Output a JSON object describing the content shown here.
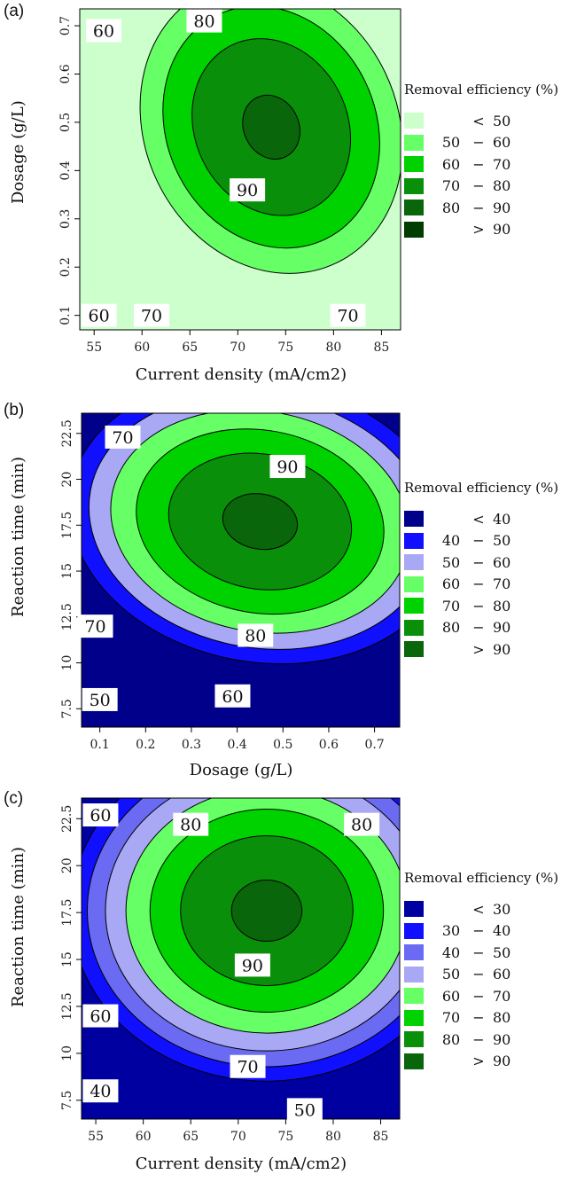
{
  "chart_data": [
    {
      "type": "contour",
      "panel_label": "(a)",
      "xlabel": "Current density (mA/cm2)",
      "ylabel": "Dosage (g/L)",
      "xlim": [
        53.5,
        87
      ],
      "ylim": [
        0.07,
        0.735
      ],
      "xticks": [
        55,
        60,
        65,
        70,
        75,
        80,
        85
      ],
      "yticks": [
        0.1,
        0.2,
        0.3,
        0.4,
        0.5,
        0.6,
        0.7
      ],
      "ytick_labels": [
        "0.1",
        "0.2",
        "0.3",
        "0.4",
        "0.5",
        "0.6",
        "0.7"
      ],
      "contour_levels": [
        60,
        70,
        80,
        90
      ],
      "optimum": {
        "x": 73.5,
        "y": 0.49,
        "max": 91.5
      },
      "contour_labels": [
        {
          "text": "60",
          "x": 56.0,
          "y": 0.69
        },
        {
          "text": "80",
          "x": 66.5,
          "y": 0.71
        },
        {
          "text": "90",
          "x": 71.0,
          "y": 0.36
        },
        {
          "text": "60",
          "x": 55.5,
          "y": 0.1
        },
        {
          "text": "70",
          "x": 61.0,
          "y": 0.1
        },
        {
          "text": "70",
          "x": 81.5,
          "y": 0.1
        }
      ],
      "legend": {
        "title": "Removal efficiency (%)",
        "entries": [
          {
            "lo": "",
            "op": "<",
            "hi": "50",
            "color": "#ccffcc"
          },
          {
            "lo": "50",
            "op": "−",
            "hi": "60",
            "color": "#66ff66"
          },
          {
            "lo": "60",
            "op": "−",
            "hi": "70",
            "color": "#00d200"
          },
          {
            "lo": "70",
            "op": "−",
            "hi": "80",
            "color": "#0a8f0a"
          },
          {
            "lo": "80",
            "op": "−",
            "hi": "90",
            "color": "#0a660a"
          },
          {
            "lo": "",
            "op": ">",
            "hi": "90",
            "color": "#003d00"
          }
        ]
      }
    },
    {
      "type": "contour",
      "panel_label": "(b)",
      "xlabel": "Dosage (g/L)",
      "ylabel": "Reaction time (min)",
      "xlim": [
        0.06,
        0.755
      ],
      "ylim": [
        6.5,
        23.6
      ],
      "xticks": [
        0.1,
        0.2,
        0.3,
        0.4,
        0.5,
        0.6,
        0.7
      ],
      "xtick_labels": [
        "0.1",
        "0.2",
        "0.3",
        "0.4",
        "0.5",
        "0.6",
        "0.7"
      ],
      "yticks": [
        7.5,
        10,
        12.5,
        15,
        17.5,
        20,
        22.5
      ],
      "contour_levels": [
        40,
        50,
        60,
        70,
        80,
        90
      ],
      "optimum": {
        "x": 0.45,
        "y": 17.7,
        "max": 92
      },
      "contour_labels": [
        {
          "text": "70",
          "x": 0.15,
          "y": 22.3
        },
        {
          "text": "90",
          "x": 0.51,
          "y": 20.7
        },
        {
          "text": "70",
          "x": 0.09,
          "y": 12.0
        },
        {
          "text": "80",
          "x": 0.44,
          "y": 11.5
        },
        {
          "text": "50",
          "x": 0.1,
          "y": 8.0
        },
        {
          "text": "60",
          "x": 0.39,
          "y": 8.2
        }
      ],
      "legend": {
        "title": "Removal efficiency (%)",
        "entries": [
          {
            "lo": "",
            "op": "<",
            "hi": "40",
            "color": "#00008b"
          },
          {
            "lo": "40",
            "op": "−",
            "hi": "50",
            "color": "#1010ff"
          },
          {
            "lo": "50",
            "op": "−",
            "hi": "60",
            "color": "#a8a8f5"
          },
          {
            "lo": "60",
            "op": "−",
            "hi": "70",
            "color": "#66ff66"
          },
          {
            "lo": "70",
            "op": "−",
            "hi": "80",
            "color": "#00d200"
          },
          {
            "lo": "80",
            "op": "−",
            "hi": "90",
            "color": "#0a8f0a"
          },
          {
            "lo": "",
            "op": ">",
            "hi": "90",
            "color": "#0a660a"
          }
        ]
      }
    },
    {
      "type": "contour",
      "panel_label": "(c)",
      "xlabel": "Current density (mA/cm2)",
      "ylabel": "Reaction time (min)",
      "xlim": [
        53.5,
        87
      ],
      "ylim": [
        6.5,
        23.6
      ],
      "xticks": [
        55,
        60,
        65,
        70,
        75,
        80,
        85
      ],
      "yticks": [
        7.5,
        10,
        12.5,
        15,
        17.5,
        20,
        22.5
      ],
      "contour_levels": [
        30,
        40,
        50,
        60,
        70,
        80,
        90
      ],
      "optimum": {
        "x": 73,
        "y": 17.6,
        "max": 92
      },
      "contour_labels": [
        {
          "text": "60",
          "x": 55.5,
          "y": 22.7
        },
        {
          "text": "80",
          "x": 65.0,
          "y": 22.2
        },
        {
          "text": "80",
          "x": 83.0,
          "y": 22.2
        },
        {
          "text": "90",
          "x": 71.5,
          "y": 14.7
        },
        {
          "text": "60",
          "x": 55.5,
          "y": 12.0
        },
        {
          "text": "70",
          "x": 71.0,
          "y": 9.3
        },
        {
          "text": "40",
          "x": 55.5,
          "y": 8.0
        },
        {
          "text": "50",
          "x": 77.0,
          "y": 7.0
        }
      ],
      "legend": {
        "title": "Removal efficiency (%)",
        "entries": [
          {
            "lo": "",
            "op": "<",
            "hi": "30",
            "color": "#0000a0"
          },
          {
            "lo": "30",
            "op": "−",
            "hi": "40",
            "color": "#1010ff"
          },
          {
            "lo": "40",
            "op": "−",
            "hi": "50",
            "color": "#6a6af2"
          },
          {
            "lo": "50",
            "op": "−",
            "hi": "60",
            "color": "#a8a8f5"
          },
          {
            "lo": "60",
            "op": "−",
            "hi": "70",
            "color": "#66ff66"
          },
          {
            "lo": "70",
            "op": "−",
            "hi": "80",
            "color": "#00d200"
          },
          {
            "lo": "80",
            "op": "−",
            "hi": "90",
            "color": "#0a8f0a"
          },
          {
            "lo": "",
            "op": ">",
            "hi": "90",
            "color": "#0a660a"
          }
        ]
      }
    }
  ]
}
